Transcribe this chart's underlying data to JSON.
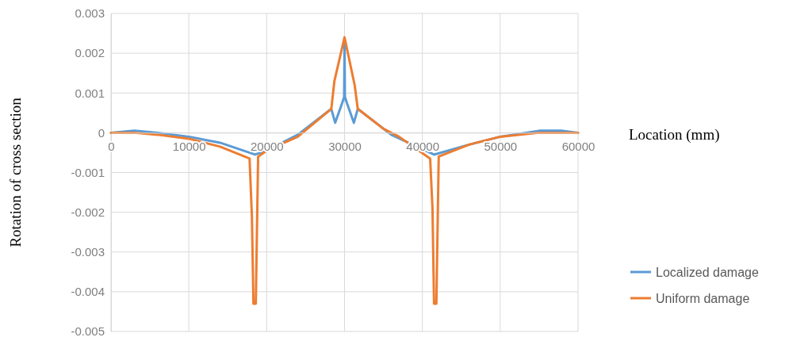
{
  "chart_data": {
    "type": "line",
    "xlabel": "Location (mm)",
    "ylabel": "Rotation of cross section",
    "xlim": [
      0,
      60000
    ],
    "xticks": [
      0,
      10000,
      20000,
      30000,
      40000,
      50000,
      60000
    ],
    "ylim": [
      -0.005,
      0.003
    ],
    "yticks": [
      {
        "value": -0.005,
        "label": "-0.005"
      },
      {
        "value": -0.004,
        "label": "-0.004"
      },
      {
        "value": -0.003,
        "label": "-0.003"
      },
      {
        "value": -0.002,
        "label": "-0.002"
      },
      {
        "value": -0.001,
        "label": "-0.001"
      },
      0,
      {
        "value": 0.001,
        "label": "0.001"
      },
      {
        "value": 0.002,
        "label": "0.002"
      },
      {
        "value": 0.003,
        "label": "0.003"
      }
    ],
    "grid": true,
    "legend": "bottom right",
    "marker": "none",
    "line_style": "solid",
    "series": [
      {
        "name": "Localized damage",
        "color": "#5b9bd5",
        "x": [
          0,
          3000,
          6000,
          10000,
          14000,
          18500,
          20000,
          24000,
          28300,
          28800,
          29700,
          29950,
          30000,
          30050,
          30300,
          31200,
          31700,
          36000,
          41500,
          46000,
          50000,
          55000,
          58000,
          60000
        ],
        "values": [
          0,
          5e-05,
          0,
          -0.0001,
          -0.00025,
          -0.00055,
          -0.00045,
          -5e-05,
          0.0006,
          0.00025,
          0.00075,
          0.0009,
          0.0023,
          0.0009,
          0.00075,
          0.00025,
          0.0006,
          -5e-05,
          -0.00055,
          -0.0003,
          -0.0001,
          5e-05,
          5e-05,
          0
        ]
      },
      {
        "name": "Uniform damage",
        "color": "#ed7d31",
        "x": [
          0,
          3000,
          6000,
          10000,
          14000,
          17800,
          18100,
          18300,
          18600,
          18900,
          20000,
          24000,
          28300,
          28700,
          30000,
          31300,
          31700,
          35000,
          37000,
          41000,
          41300,
          41500,
          41800,
          42100,
          46000,
          50000,
          55000,
          58000,
          60000
        ],
        "values": [
          0,
          0,
          -5e-05,
          -0.00015,
          -0.00035,
          -0.00065,
          -0.0021,
          -0.0043,
          -0.0043,
          -0.0006,
          -0.00045,
          -0.0001,
          0.0006,
          0.0013,
          0.0024,
          0.0012,
          0.0006,
          0.0001,
          -0.0001,
          -0.00065,
          -0.0019,
          -0.0043,
          -0.0043,
          -0.0006,
          -0.0003,
          -0.0001,
          0,
          0,
          0
        ]
      }
    ]
  }
}
